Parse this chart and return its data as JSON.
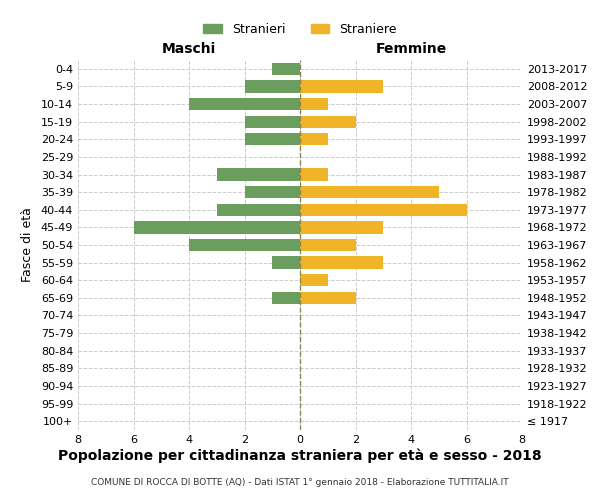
{
  "age_groups": [
    "100+",
    "95-99",
    "90-94",
    "85-89",
    "80-84",
    "75-79",
    "70-74",
    "65-69",
    "60-64",
    "55-59",
    "50-54",
    "45-49",
    "40-44",
    "35-39",
    "30-34",
    "25-29",
    "20-24",
    "15-19",
    "10-14",
    "5-9",
    "0-4"
  ],
  "birth_years": [
    "≤ 1917",
    "1918-1922",
    "1923-1927",
    "1928-1932",
    "1933-1937",
    "1938-1942",
    "1943-1947",
    "1948-1952",
    "1953-1957",
    "1958-1962",
    "1963-1967",
    "1968-1972",
    "1973-1977",
    "1978-1982",
    "1983-1987",
    "1988-1992",
    "1993-1997",
    "1998-2002",
    "2003-2007",
    "2008-2012",
    "2013-2017"
  ],
  "maschi": [
    0,
    0,
    0,
    0,
    0,
    0,
    0,
    1,
    0,
    1,
    4,
    6,
    3,
    2,
    3,
    0,
    2,
    2,
    4,
    2,
    1
  ],
  "femmine": [
    0,
    0,
    0,
    0,
    0,
    0,
    0,
    2,
    1,
    3,
    2,
    3,
    6,
    5,
    1,
    0,
    1,
    2,
    1,
    3,
    0
  ],
  "color_maschi": "#6b9e5e",
  "color_femmine": "#f0b429",
  "title": "Popolazione per cittadinanza straniera per età e sesso - 2018",
  "subtitle": "COMUNE DI ROCCA DI BOTTE (AQ) - Dati ISTAT 1° gennaio 2018 - Elaborazione TUTTITALIA.IT",
  "ylabel_left": "Fasce di età",
  "xlabel_left": "Maschi",
  "xlabel_right": "Femmine",
  "legend_maschi": "Stranieri",
  "legend_femmine": "Straniere",
  "xlim": 8,
  "background_color": "#ffffff",
  "grid_color": "#cccccc"
}
